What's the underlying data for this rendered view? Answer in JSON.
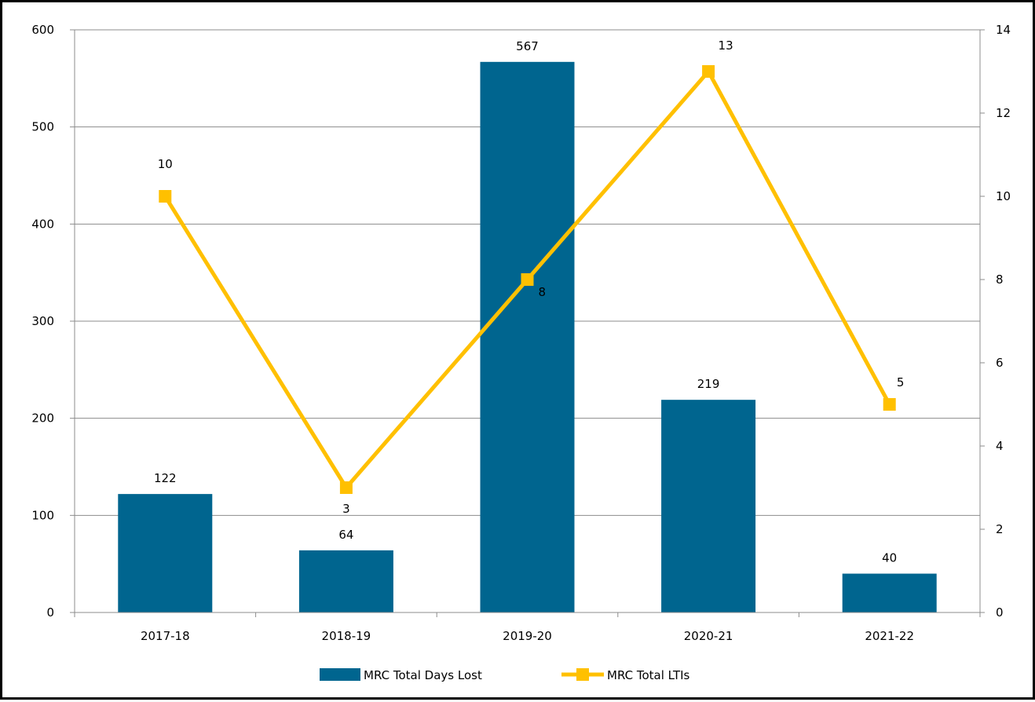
{
  "chart_data": {
    "type": "bar",
    "categories": [
      "2017-18",
      "2018-19",
      "2019-20",
      "2020-21",
      "2021-22"
    ],
    "series": [
      {
        "name": "MRC Total Days Lost",
        "type": "bar",
        "axis": "left",
        "color": "#00658f",
        "values": [
          122,
          64,
          567,
          219,
          40
        ]
      },
      {
        "name": "MRC Total LTIs",
        "type": "line",
        "axis": "right",
        "color": "#ffc000",
        "marker": "square",
        "values": [
          10,
          3,
          8,
          13,
          5
        ]
      }
    ],
    "y_left": {
      "ylim": [
        0,
        600
      ],
      "ticks": [
        "0",
        "100",
        "200",
        "300",
        "400",
        "500",
        "600"
      ]
    },
    "y_right": {
      "ylim": [
        0,
        14
      ],
      "ticks": [
        "0",
        "2",
        "4",
        "6",
        "8",
        "10",
        "12",
        "14"
      ]
    },
    "grid": true,
    "legend": "bottom-center",
    "title": "",
    "xlabel": "",
    "ylabel": ""
  }
}
